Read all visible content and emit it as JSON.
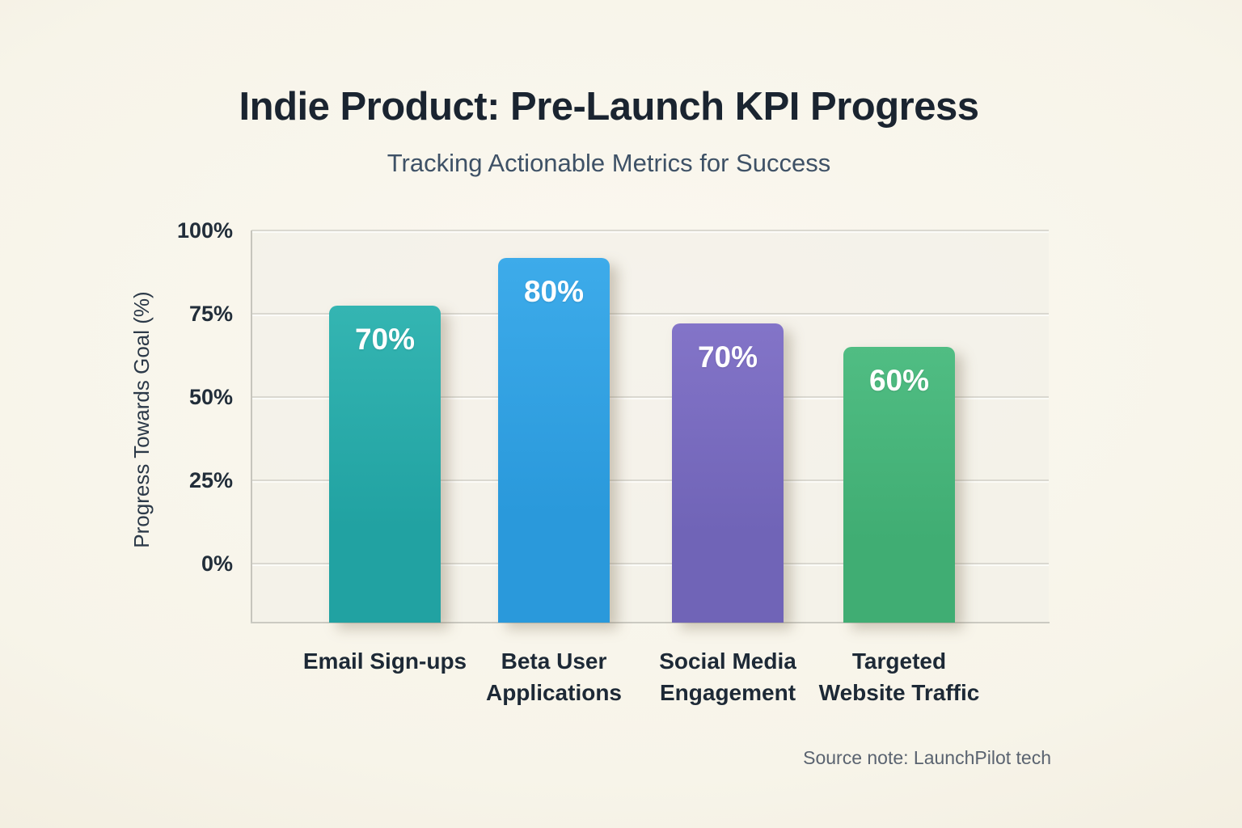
{
  "header": {
    "title": "Indie Product: Pre-Launch KPI Progress",
    "subtitle": "Tracking Actionable Metrics for Success"
  },
  "footer": {
    "source_note": "Source note: LaunchPilot tech"
  },
  "colors": {
    "background_cream": "#f7f4e9",
    "title_text": "#1a2430",
    "subtitle_text": "#3e5166",
    "axis_text": "#222e3a",
    "category_text": "#1d2936",
    "gridline": "#dad8d0",
    "axis_line": "#c6c5bd",
    "bar_value_text": "#ffffff",
    "source_text": "#5a6370"
  },
  "chart_data": {
    "type": "bar",
    "title": "Indie Product: Pre-Launch KPI Progress",
    "subtitle": "Tracking Actionable Metrics for Success",
    "xlabel": "",
    "ylabel": "Progress Towards Goal (%)",
    "ylim": [
      0,
      100
    ],
    "grid": true,
    "legend_position": "none",
    "yticks": [
      {
        "label": "100%",
        "value": 100
      },
      {
        "label": "75%",
        "value": 75
      },
      {
        "label": "50%",
        "value": 50
      },
      {
        "label": "25%",
        "value": 25
      },
      {
        "label": "0%",
        "value": 0
      }
    ],
    "categories": [
      "Email Sign-ups",
      "Beta User Applications",
      "Social Media Engagement",
      "Targeted Website Traffic"
    ],
    "category_label_lines": [
      [
        "Email Sign-ups"
      ],
      [
        "Beta User",
        "Applications"
      ],
      [
        "Social Media",
        "Engagement"
      ],
      [
        "Targeted",
        "Website Traffic"
      ]
    ],
    "values": [
      70,
      80,
      70,
      60
    ],
    "value_labels": [
      "70%",
      "80%",
      "70%",
      "60%"
    ],
    "bar_colors": [
      "#21a2a2",
      "#2a99db",
      "#7064b7",
      "#40ad73"
    ],
    "bar_colors_light": [
      "#34b5b2",
      "#3dabea",
      "#8374c8",
      "#50bd83"
    ],
    "bar_drawn_top_percent_visual": [
      77.4,
      91.7,
      72,
      65
    ]
  }
}
